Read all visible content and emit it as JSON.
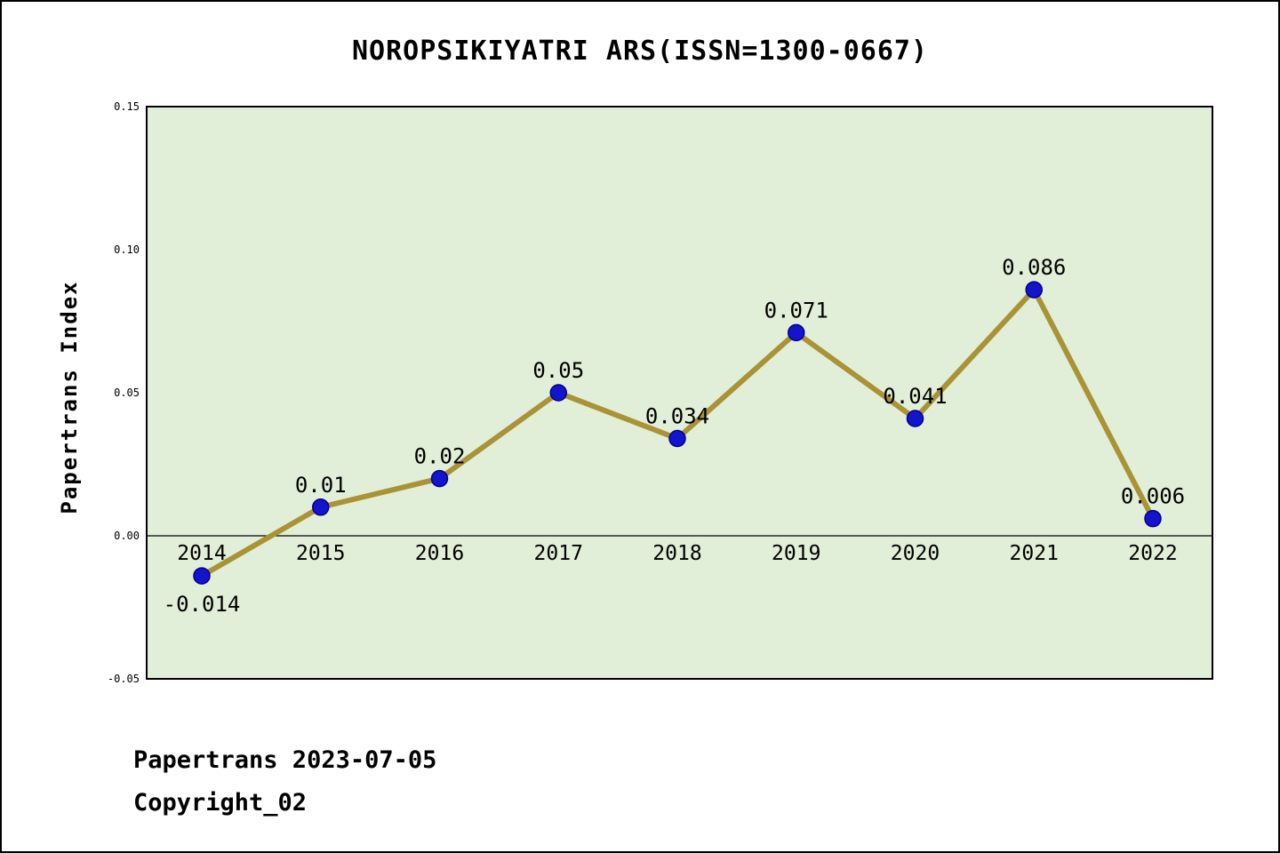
{
  "title": "NOROPSIKIYATRI ARS(ISSN=1300-0667)",
  "ylabel": "Papertrans Index",
  "footer": {
    "line1": "Papertrans 2023-07-05",
    "line2": "Copyright_02"
  },
  "colors": {
    "plot_bg": "#e2efd8",
    "plot_border": "#000000",
    "line": "#a99336",
    "point_fill": "#1414cd",
    "point_edge": "#00008b",
    "text": "#000000"
  },
  "chart_data": {
    "type": "line",
    "title": "NOROPSIKIYATRI ARS(ISSN=1300-0667)",
    "xlabel": "",
    "ylabel": "Papertrans Index",
    "categories": [
      "2014",
      "2015",
      "2016",
      "2017",
      "2018",
      "2019",
      "2020",
      "2021",
      "2022"
    ],
    "values": [
      -0.014,
      0.01,
      0.02,
      0.05,
      0.034,
      0.071,
      0.041,
      0.086,
      0.006
    ],
    "point_labels": [
      "-0.014",
      "0.01",
      "0.02",
      "0.05",
      "0.034",
      "0.071",
      "0.041",
      "0.086",
      "0.006"
    ],
    "ylim": [
      -0.05,
      0.15
    ],
    "yticks": [
      0.15,
      0.1,
      0.05,
      0.0,
      -0.05
    ],
    "ytick_labels": [
      "0.15",
      "0.10",
      "0.05",
      "0.00",
      "-0.05"
    ],
    "grid": false,
    "legend": false,
    "zero_baseline": true
  }
}
